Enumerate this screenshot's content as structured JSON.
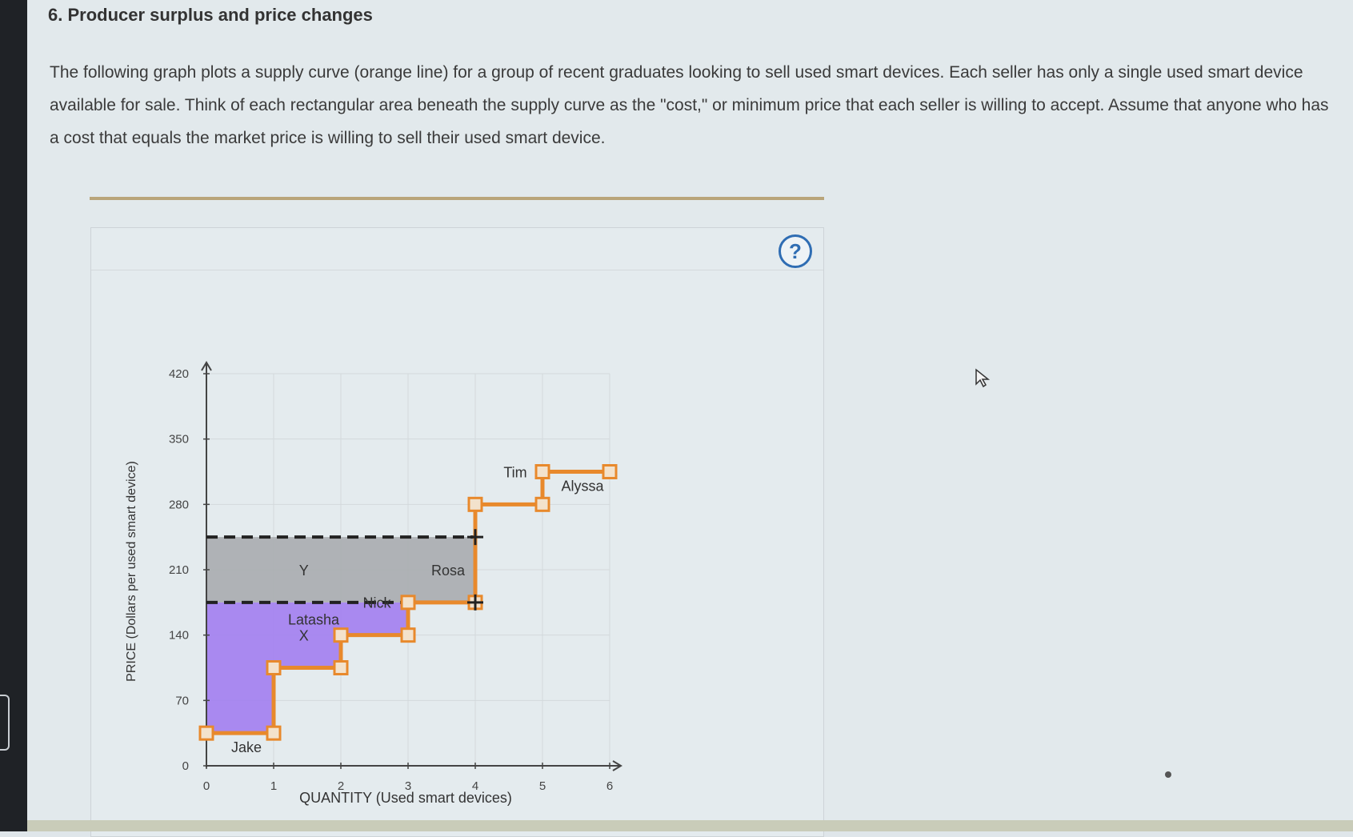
{
  "question": {
    "title": "6. Producer surplus and price changes",
    "body": "The following graph plots a supply curve (orange line) for a group of recent graduates looking to sell used smart devices. Each seller has only a single used smart device available for sale. Think of each rectangular area beneath the supply curve as the \"cost,\" or minimum price that each seller is willing to accept. Assume that anyone who has a cost that equals the market price is willing to sell their used smart device."
  },
  "help_button": {
    "label": "?"
  },
  "colors": {
    "supply": "#e8892c",
    "area_x": "#a27ef0",
    "area_y": "#a8acaf",
    "accent": "#2f6db3"
  },
  "chart_data": {
    "type": "line",
    "xlabel": "QUANTITY (Used smart devices)",
    "ylabel": "PRICE (Dollars per used smart device)",
    "xlim": [
      0,
      6
    ],
    "ylim": [
      0,
      420
    ],
    "x_ticks": [
      "0",
      "1",
      "2",
      "3",
      "4",
      "5",
      "6"
    ],
    "y_ticks": [
      "0",
      "70",
      "140",
      "210",
      "280",
      "350",
      "420"
    ],
    "grid": true,
    "series": [
      {
        "name": "Supply",
        "steps": [
          {
            "seller": "Jake",
            "x0": 0,
            "x1": 1,
            "price": 35
          },
          {
            "seller": "Latasha",
            "x0": 1,
            "x1": 2,
            "price": 105
          },
          {
            "seller": "Nick",
            "x0": 2,
            "x1": 3,
            "price": 140
          },
          {
            "seller": "Rosa",
            "x0": 3,
            "x1": 4,
            "price": 175
          },
          {
            "seller": "Tim",
            "x0": 4,
            "x1": 5,
            "price": 280
          },
          {
            "seller": "Alyssa",
            "x0": 5,
            "x1": 6,
            "price": 315
          }
        ]
      }
    ],
    "price_lines": [
      175,
      245
    ],
    "areas": [
      {
        "label": "X",
        "y_top": 175
      },
      {
        "label": "Y",
        "y_bottom": 175,
        "y_top": 245
      }
    ]
  }
}
